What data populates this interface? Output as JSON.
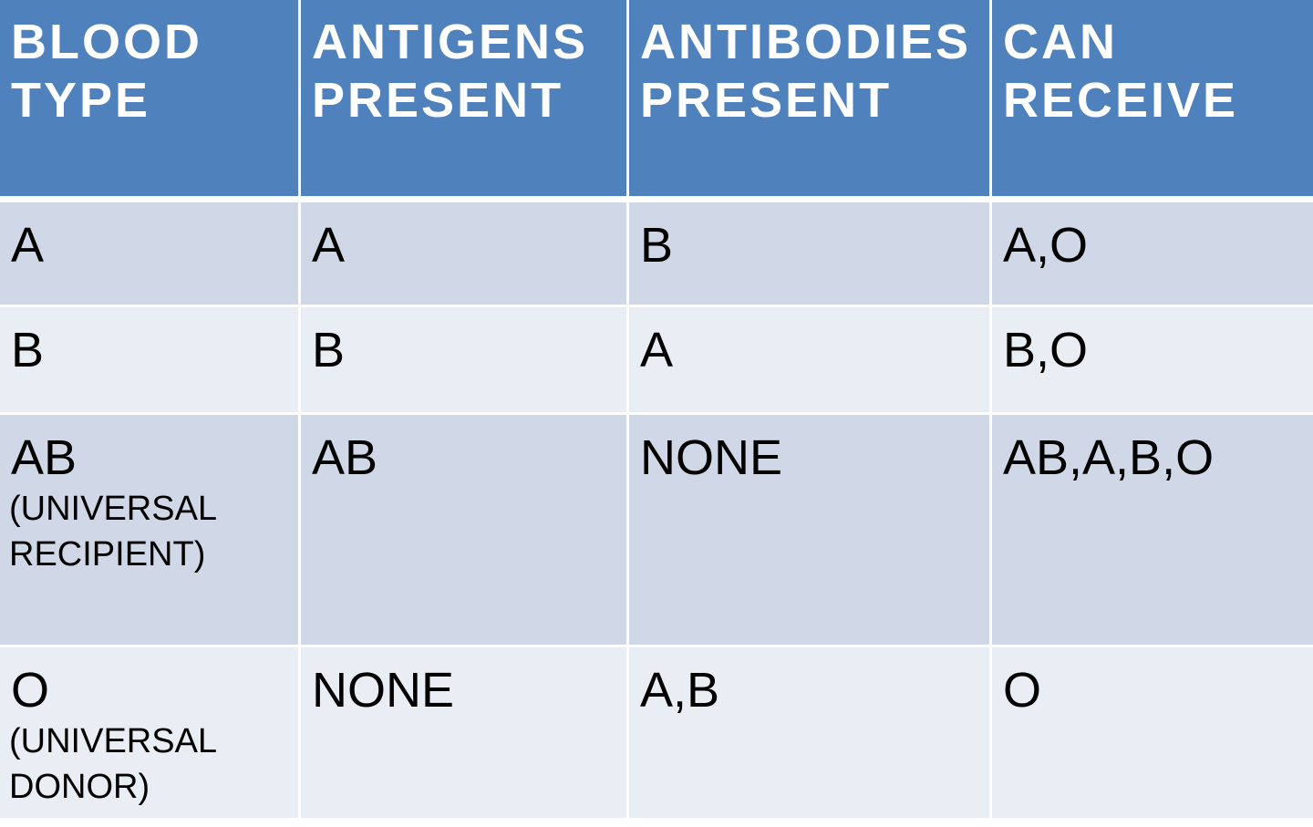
{
  "table": {
    "headers": [
      "BLOOD\nTYPE",
      "ANTIGENS\nPRESENT",
      "ANTIBODIES\nPRESENT",
      "CAN\nRECEIVE"
    ],
    "rows": [
      {
        "blood_type": "A",
        "blood_type_note": "",
        "antigens": "A",
        "antibodies": "B",
        "can_receive": "A,O"
      },
      {
        "blood_type": "B",
        "blood_type_note": "",
        "antigens": "B",
        "antibodies": "A",
        "can_receive": "B,O"
      },
      {
        "blood_type": "AB",
        "blood_type_note": "(UNIVERSAL\nRECIPIENT)",
        "antigens": "AB",
        "antibodies": "NONE",
        "can_receive": "AB,A,B,O"
      },
      {
        "blood_type": "O",
        "blood_type_note": "(UNIVERSAL\nDONOR)",
        "antigens": "NONE",
        "antibodies": "A,B",
        "can_receive": "O"
      }
    ]
  },
  "colors": {
    "header_bg": "#4f81bd",
    "row_odd_bg": "#d0d8e8",
    "row_even_bg": "#e9edf4"
  }
}
